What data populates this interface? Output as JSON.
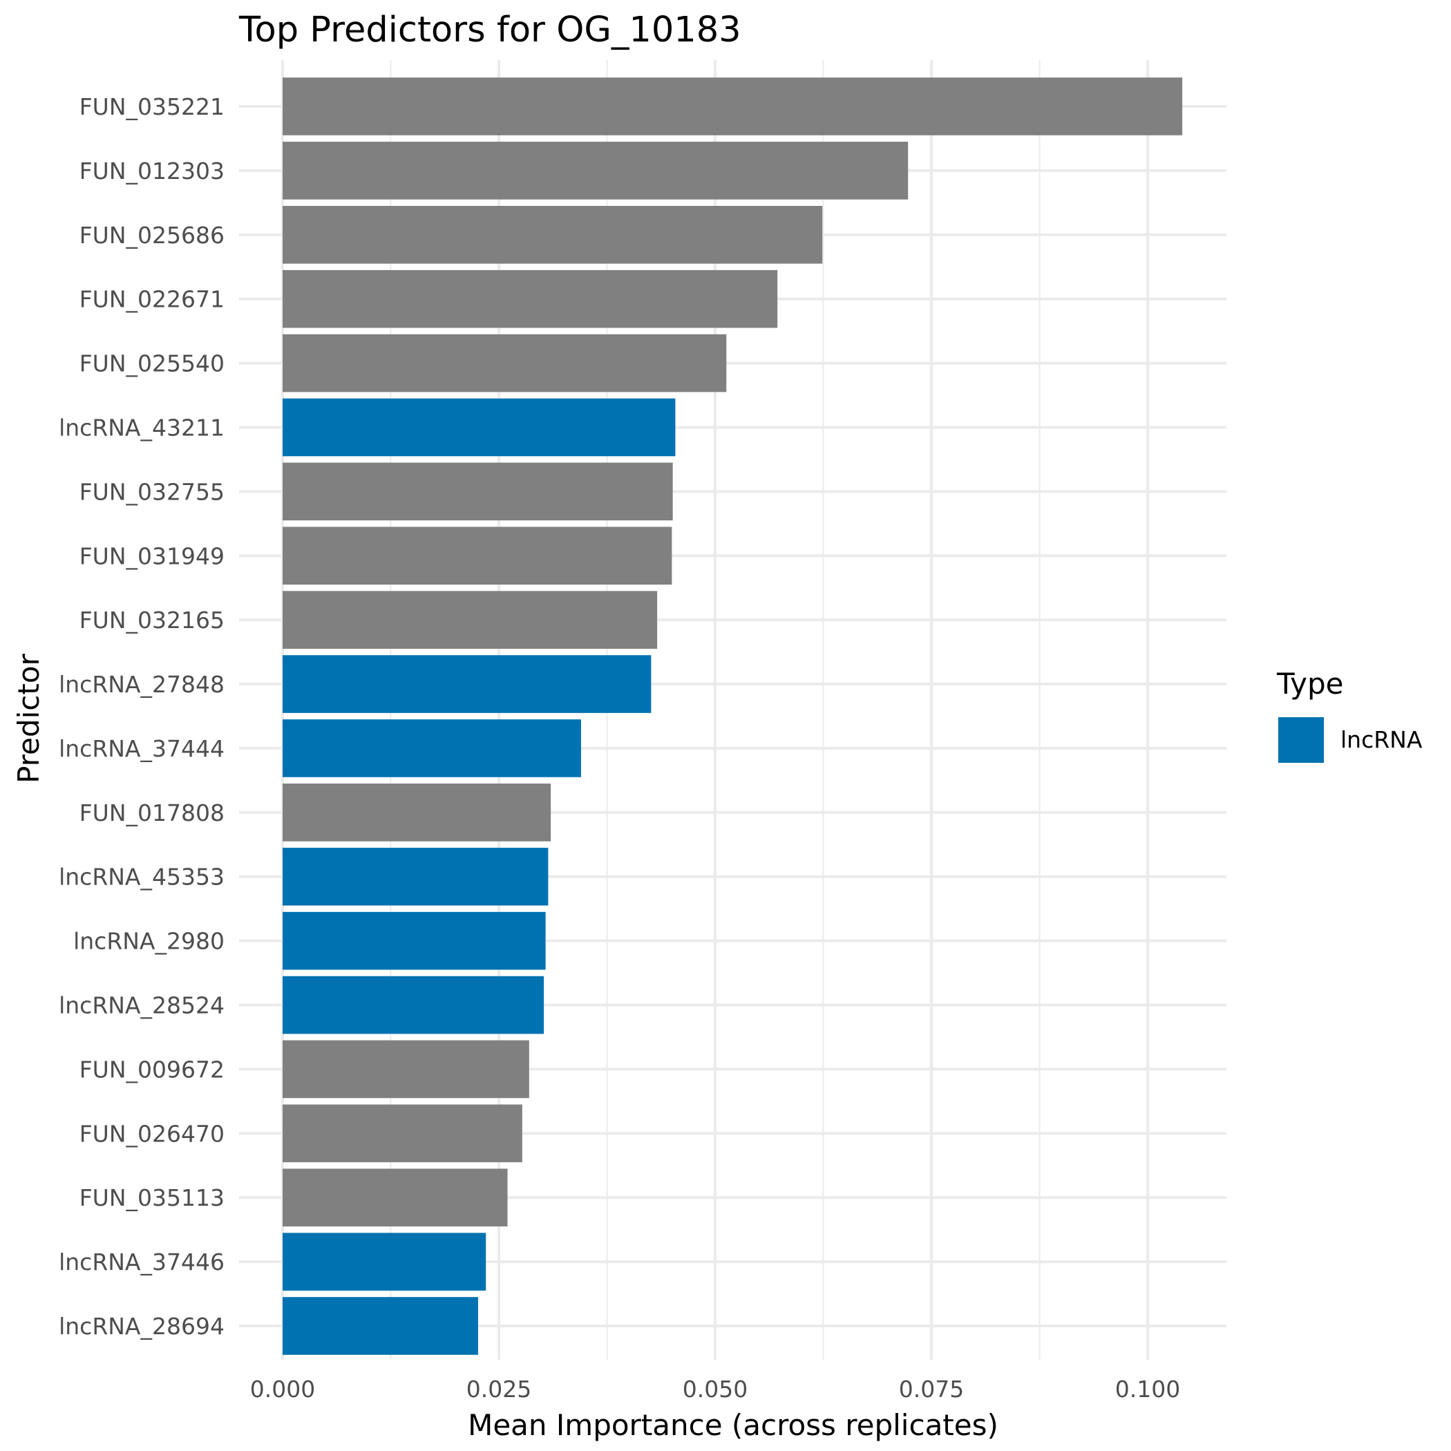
{
  "chart_data": {
    "type": "bar",
    "orientation": "horizontal",
    "title": "Top Predictors for OG_10183",
    "xlabel": "Mean Importance (across replicates)",
    "ylabel": "Predictor",
    "xlim": [
      0,
      0.1085
    ],
    "x_ticks": [
      0.0,
      0.025,
      0.05,
      0.075,
      0.1
    ],
    "x_tick_labels": [
      "0.000",
      "0.025",
      "0.050",
      "0.075",
      "0.100"
    ],
    "grid": true,
    "legend": {
      "title": "Type",
      "placement": "right",
      "entries": [
        {
          "label": "lncRNA",
          "color": "#0072B2"
        }
      ]
    },
    "colors": {
      "FUN": "#808080",
      "lncRNA": "#0072B2"
    },
    "categories": [
      "FUN_035221",
      "FUN_012303",
      "FUN_025686",
      "FUN_022671",
      "FUN_025540",
      "lncRNA_43211",
      "FUN_032755",
      "FUN_031949",
      "FUN_032165",
      "lncRNA_27848",
      "lncRNA_37444",
      "FUN_017808",
      "lncRNA_45353",
      "lncRNA_2980",
      "lncRNA_28524",
      "FUN_009672",
      "FUN_026470",
      "FUN_035113",
      "lncRNA_37446",
      "lncRNA_28694"
    ],
    "values": [
      0.104,
      0.0723,
      0.0624,
      0.0572,
      0.0513,
      0.0454,
      0.0451,
      0.045,
      0.0433,
      0.0426,
      0.0345,
      0.031,
      0.0307,
      0.0304,
      0.0302,
      0.0285,
      0.0277,
      0.026,
      0.0235,
      0.0226
    ],
    "types": [
      "FUN",
      "FUN",
      "FUN",
      "FUN",
      "FUN",
      "lncRNA",
      "FUN",
      "FUN",
      "FUN",
      "lncRNA",
      "lncRNA",
      "FUN",
      "lncRNA",
      "lncRNA",
      "lncRNA",
      "FUN",
      "FUN",
      "FUN",
      "lncRNA",
      "lncRNA"
    ]
  }
}
